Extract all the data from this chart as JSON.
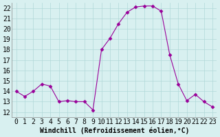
{
  "x": [
    0,
    1,
    2,
    3,
    4,
    5,
    6,
    7,
    8,
    9,
    10,
    11,
    12,
    13,
    14,
    15,
    16,
    17,
    18,
    19,
    20,
    21,
    22,
    23
  ],
  "y": [
    14.0,
    13.5,
    14.0,
    14.7,
    14.5,
    13.0,
    13.1,
    13.0,
    13.0,
    12.2,
    18.0,
    19.1,
    20.5,
    21.6,
    22.1,
    22.2,
    22.2,
    21.7,
    17.5,
    14.7,
    13.1,
    13.7,
    13.0,
    12.5
  ],
  "line_color": "#990099",
  "marker": "D",
  "marker_size": 2.5,
  "background_color": "#d8f0f0",
  "grid_color": "#b0d8d8",
  "xlabel": "Windchill (Refroidissement éolien,°C)",
  "tick_fontsize": 7,
  "xlabel_fontsize": 7,
  "ylim": [
    11.5,
    22.5
  ],
  "xlim": [
    -0.5,
    23.5
  ],
  "yticks": [
    12,
    13,
    14,
    15,
    16,
    17,
    18,
    19,
    20,
    21,
    22
  ],
  "xticks": [
    0,
    1,
    2,
    3,
    4,
    5,
    6,
    7,
    8,
    9,
    10,
    11,
    12,
    13,
    14,
    15,
    16,
    17,
    18,
    19,
    20,
    21,
    22,
    23
  ]
}
